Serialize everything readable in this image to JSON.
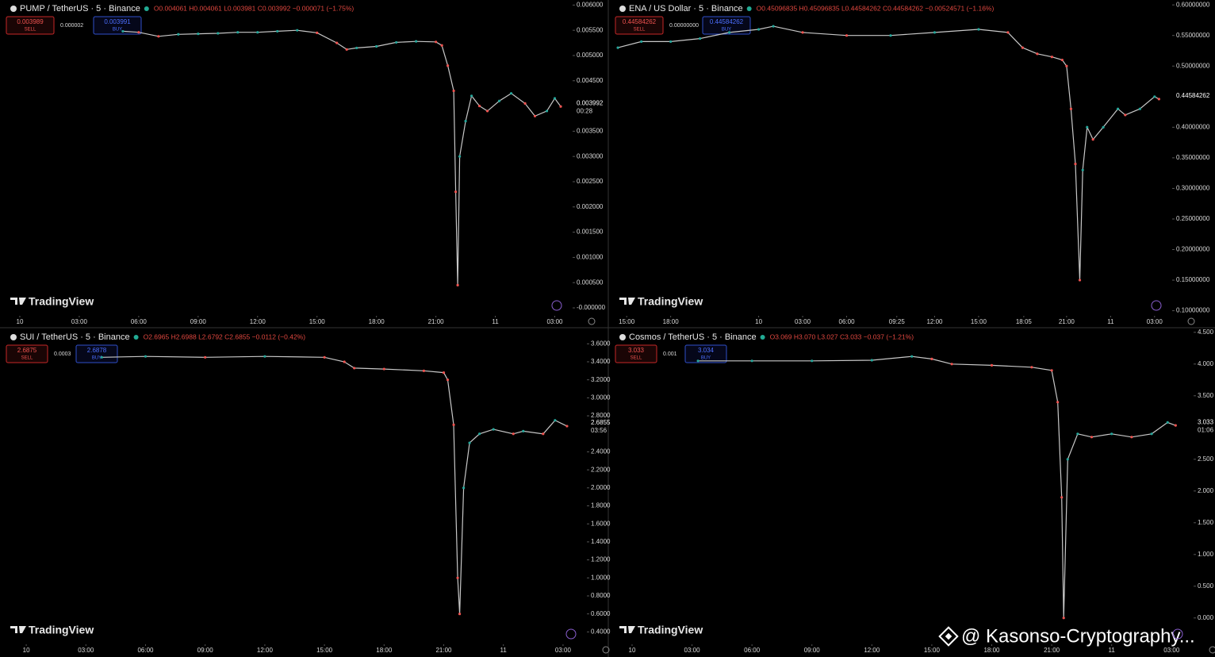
{
  "watermark": "@ Kasonso-Cryptography...",
  "chart_data": [
    {
      "type": "line",
      "title": "PUMP / TetherUS · 5 · Binance",
      "ohlc": "O0.004061 H0.004061 L0.003981 C0.003992 −0.000071 (−1.75%)",
      "sell_price": "0.003989",
      "sell_label": "SELL",
      "spread": "0.000002",
      "buy_price": "0.003991",
      "buy_label": "BUY",
      "last_price": "0.003992",
      "countdown": "00:28",
      "brand": "TradingView",
      "color": "#c8c8c8",
      "x": [
        5.2,
        6,
        7,
        8,
        9,
        10,
        11,
        12,
        13,
        14,
        15,
        16,
        16.5,
        17,
        18,
        19,
        20,
        21,
        21.3,
        21.6,
        21.9,
        22.0,
        22.1,
        22.2,
        22.5,
        22.8,
        23.2,
        23.6,
        24.2,
        24.8,
        25.5,
        26,
        26.6,
        27,
        27.3
      ],
      "values": [
        0.00548,
        0.00546,
        0.00538,
        0.00542,
        0.00543,
        0.00544,
        0.00546,
        0.00546,
        0.00548,
        0.0055,
        0.00545,
        0.00525,
        0.00512,
        0.00515,
        0.00518,
        0.00526,
        0.00528,
        0.00527,
        0.0052,
        0.0048,
        0.0043,
        0.0023,
        0.00045,
        0.003,
        0.0037,
        0.0042,
        0.004,
        0.0039,
        0.0041,
        0.00425,
        0.00405,
        0.0038,
        0.0039,
        0.00415,
        0.00399
      ],
      "xlim": [
        -1,
        27.9
      ],
      "ylim": [
        -0.00011,
        0.0061
      ],
      "xticks": [
        {
          "value": 0,
          "label": "10"
        },
        {
          "value": 3,
          "label": "03:00"
        },
        {
          "value": 6,
          "label": "06:00"
        },
        {
          "value": 9,
          "label": "09:00"
        },
        {
          "value": 12,
          "label": "12:00"
        },
        {
          "value": 15,
          "label": "15:00"
        },
        {
          "value": 18,
          "label": "18:00"
        },
        {
          "value": 21,
          "label": "21:00"
        },
        {
          "value": 24,
          "label": "11"
        },
        {
          "value": 27,
          "label": "03:00"
        }
      ],
      "yticks": [
        {
          "value": 0.006,
          "label": "0.006000"
        },
        {
          "value": 0.0055,
          "label": "0.005500"
        },
        {
          "value": 0.005,
          "label": "0.005000"
        },
        {
          "value": 0.0045,
          "label": "0.004500"
        },
        {
          "value": 0.0035,
          "label": "0.003500"
        },
        {
          "value": 0.003,
          "label": "0.003000"
        },
        {
          "value": 0.0025,
          "label": "0.002500"
        },
        {
          "value": 0.002,
          "label": "0.002000"
        },
        {
          "value": 0.0015,
          "label": "0.001500"
        },
        {
          "value": 0.001,
          "label": "0.001000"
        },
        {
          "value": 0.0005,
          "label": "0.000500"
        },
        {
          "value": 0,
          "label": "-0.000000"
        }
      ]
    },
    {
      "type": "line",
      "title": "ENA / US Dollar · 5 · Binance",
      "ohlc": "O0.45096835 H0.45096835 L0.44584262 C0.44584262 −0.00524571 (−1.16%)",
      "sell_price": "0.44584262",
      "sell_label": "SELL",
      "spread": "0.00000000",
      "buy_price": "0.44584262",
      "buy_label": "BUY",
      "last_price": "0.44584262",
      "brand": "TradingView",
      "color": "#c8c8c8",
      "x": [
        -9.6,
        -8,
        -6,
        -4,
        -2,
        0,
        1,
        3,
        6,
        9,
        12,
        15,
        17,
        18,
        19,
        20,
        20.7,
        21,
        21.3,
        21.6,
        21.9,
        22.1,
        22.4,
        22.8,
        23.5,
        24.5,
        25,
        26,
        27,
        27.3
      ],
      "values": [
        0.53,
        0.54,
        0.54,
        0.545,
        0.555,
        0.56,
        0.565,
        0.555,
        0.55,
        0.55,
        0.555,
        0.56,
        0.555,
        0.53,
        0.52,
        0.515,
        0.51,
        0.5,
        0.43,
        0.34,
        0.15,
        0.33,
        0.4,
        0.38,
        0.4,
        0.43,
        0.42,
        0.43,
        0.45,
        0.446
      ],
      "xlim": [
        -10.2,
        28.2
      ],
      "ylim": [
        0.093,
        0.608
      ],
      "xticks": [
        {
          "value": -9,
          "label": "15:00"
        },
        {
          "value": -6,
          "label": "18:00"
        },
        {
          "value": 0,
          "label": "10"
        },
        {
          "value": 3,
          "label": "03:00"
        },
        {
          "value": 6,
          "label": "06:00"
        },
        {
          "value": 9.42,
          "label": "09:25"
        },
        {
          "value": 12,
          "label": "12:00"
        },
        {
          "value": 15,
          "label": "15:00"
        },
        {
          "value": 18.08,
          "label": "18:05"
        },
        {
          "value": 21,
          "label": "21:00"
        },
        {
          "value": 24,
          "label": "11"
        },
        {
          "value": 27,
          "label": "03:00"
        }
      ],
      "yticks": [
        {
          "value": 0.6,
          "label": "0.60000000"
        },
        {
          "value": 0.55,
          "label": "0.55000000"
        },
        {
          "value": 0.5,
          "label": "0.50000000"
        },
        {
          "value": 0.4,
          "label": "0.40000000"
        },
        {
          "value": 0.35,
          "label": "0.35000000"
        },
        {
          "value": 0.3,
          "label": "0.30000000"
        },
        {
          "value": 0.25,
          "label": "0.25000000"
        },
        {
          "value": 0.2,
          "label": "0.20000000"
        },
        {
          "value": 0.15,
          "label": "0.15000000"
        },
        {
          "value": 0.1,
          "label": "0.10000000"
        }
      ]
    },
    {
      "type": "line",
      "title": "SUI / TetherUS · 5 · Binance",
      "ohlc": "O2.6965 H2.6988 L2.6792 C2.6855 −0.0112 (−0.42%)",
      "sell_price": "2.6875",
      "sell_label": "SELL",
      "spread": "0.0003",
      "buy_price": "2.6878",
      "buy_label": "BUY",
      "last_price": "2.6855",
      "countdown": "03:56",
      "brand": "TradingView",
      "color": "#c8c8c8",
      "x": [
        3.8,
        6,
        9,
        12,
        15,
        16,
        16.5,
        18,
        20,
        21,
        21.2,
        21.5,
        21.7,
        21.8,
        22.0,
        22.3,
        22.8,
        23.5,
        24.5,
        25,
        26,
        26.6,
        27.2
      ],
      "values": [
        3.45,
        3.46,
        3.45,
        3.46,
        3.45,
        3.4,
        3.33,
        3.32,
        3.3,
        3.28,
        3.2,
        2.7,
        1.0,
        0.6,
        2.0,
        2.5,
        2.6,
        2.65,
        2.6,
        2.63,
        2.6,
        2.75,
        2.6855
      ],
      "xlim": [
        -1.32,
        28.2
      ],
      "ylim": [
        0.28,
        3.77
      ],
      "xticks": [
        {
          "value": 0,
          "label": "10"
        },
        {
          "value": 3,
          "label": "03:00"
        },
        {
          "value": 6,
          "label": "06:00"
        },
        {
          "value": 9,
          "label": "09:00"
        },
        {
          "value": 12,
          "label": "12:00"
        },
        {
          "value": 15,
          "label": "15:00"
        },
        {
          "value": 18,
          "label": "18:00"
        },
        {
          "value": 21,
          "label": "21:00"
        },
        {
          "value": 24,
          "label": "11"
        },
        {
          "value": 27,
          "label": "03:00"
        }
      ],
      "yticks": [
        {
          "value": 3.6,
          "label": "3.6000"
        },
        {
          "value": 3.4,
          "label": "3.4000"
        },
        {
          "value": 3.2,
          "label": "3.2000"
        },
        {
          "value": 3,
          "label": "3.0000"
        },
        {
          "value": 2.8,
          "label": "2.8000"
        },
        {
          "value": 2.4,
          "label": "2.4000"
        },
        {
          "value": 2.2,
          "label": "2.2000"
        },
        {
          "value": 2,
          "label": "2.0000"
        },
        {
          "value": 1.8,
          "label": "1.8000"
        },
        {
          "value": 1.6,
          "label": "1.6000"
        },
        {
          "value": 1.4,
          "label": "1.4000"
        },
        {
          "value": 1.2,
          "label": "1.2000"
        },
        {
          "value": 1,
          "label": "1.0000"
        },
        {
          "value": 0.8,
          "label": "0.8000"
        },
        {
          "value": 0.6,
          "label": "0.6000"
        },
        {
          "value": 0.4,
          "label": "0.4000"
        }
      ]
    },
    {
      "type": "line",
      "title": "Cosmos / TetherUS · 5 · Binance",
      "ohlc": "O3.069 H3.070 L3.027 C3.033 −0.037 (−1.21%)",
      "sell_price": "3.033",
      "sell_label": "SELL",
      "spread": "0.001",
      "buy_price": "3.034",
      "buy_label": "BUY",
      "last_price": "3.033",
      "countdown": "01:06",
      "brand": "TradingView",
      "color": "#c8c8c8",
      "x": [
        3.3,
        6,
        9,
        12,
        14,
        15,
        16,
        18,
        20,
        21,
        21.3,
        21.5,
        21.6,
        21.8,
        22.3,
        23,
        24,
        25,
        26,
        26.8,
        27.2
      ],
      "values": [
        4.05,
        4.05,
        4.05,
        4.06,
        4.12,
        4.08,
        4.0,
        3.98,
        3.95,
        3.9,
        3.4,
        1.9,
        0.0,
        2.5,
        2.9,
        2.85,
        2.9,
        2.85,
        2.9,
        3.08,
        3.033
      ],
      "xlim": [
        -1.15,
        28.1
      ],
      "ylim": [
        -0.14,
        4.56
      ],
      "xticks": [
        {
          "value": 0,
          "label": "10"
        },
        {
          "value": 3,
          "label": "03:00"
        },
        {
          "value": 6,
          "label": "06:00"
        },
        {
          "value": 9,
          "label": "09:00"
        },
        {
          "value": 12,
          "label": "12:00"
        },
        {
          "value": 15,
          "label": "15:00"
        },
        {
          "value": 18,
          "label": "18:00"
        },
        {
          "value": 21,
          "label": "21:00"
        },
        {
          "value": 24,
          "label": "11"
        },
        {
          "value": 27,
          "label": "03:00"
        }
      ],
      "yticks": [
        {
          "value": 4.5,
          "label": "4.500"
        },
        {
          "value": 4,
          "label": "4.000"
        },
        {
          "value": 3.5,
          "label": "3.500"
        },
        {
          "value": 2.5,
          "label": "2.500"
        },
        {
          "value": 2,
          "label": "2.000"
        },
        {
          "value": 1.5,
          "label": "1.500"
        },
        {
          "value": 1,
          "label": "1.000"
        },
        {
          "value": 0.5,
          "label": "0.500"
        },
        {
          "value": 0,
          "label": "0.000"
        }
      ]
    }
  ]
}
